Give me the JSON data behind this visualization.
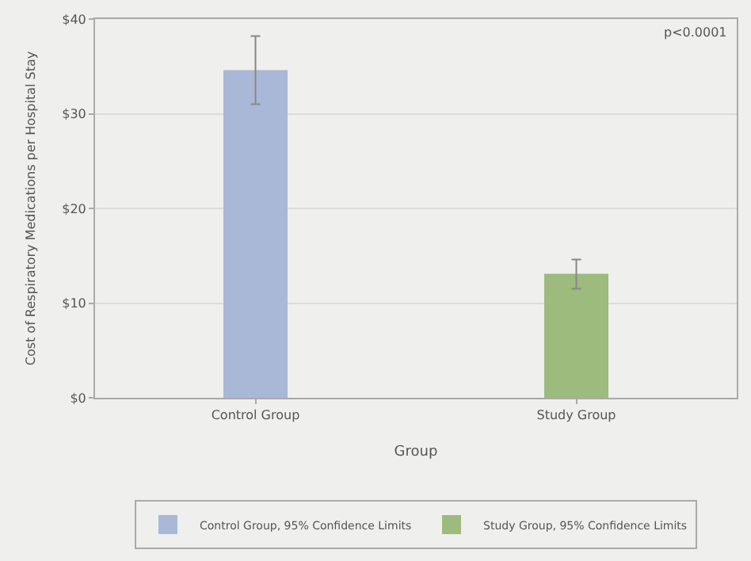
{
  "chart_data": {
    "type": "bar",
    "xlabel": "Group",
    "ylabel": "Cost of Respiratory Medications per Hospital Stay",
    "categories": [
      "Control Group",
      "Study Group"
    ],
    "series": [
      {
        "name": "Control Group, 95% Confidence Limits",
        "color": "#a9b8d6",
        "values": [
          34.6,
          null
        ],
        "errors": [
          [
            31.0,
            38.2
          ],
          null
        ]
      },
      {
        "name": "Study Group, 95% Confidence Limits",
        "color": "#9cbb7c",
        "values": [
          null,
          13.1
        ],
        "errors": [
          null,
          [
            11.5,
            14.6
          ]
        ]
      }
    ],
    "ylim": [
      0,
      40
    ],
    "yticks": [
      {
        "value": 0,
        "label": "$0"
      },
      {
        "value": 10,
        "label": "$10"
      },
      {
        "value": 20,
        "label": "$20"
      },
      {
        "value": 30,
        "label": "$30"
      },
      {
        "value": 40,
        "label": "$40"
      }
    ],
    "grid": "y",
    "legend": "bottom",
    "annotations": [
      "p<0.0001"
    ]
  }
}
